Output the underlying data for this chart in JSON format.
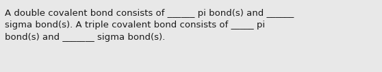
{
  "background_color": "#e8e8e8",
  "text_color": "#1a1a1a",
  "text": "A double covalent bond consists of ______ pi bond(s) and ______\nsigma bond(s). A triple covalent bond consists of _____ pi\nbond(s) and _______ sigma bond(s).",
  "font_size": 9.5,
  "fig_width": 5.58,
  "fig_height": 1.05,
  "dpi": 100
}
